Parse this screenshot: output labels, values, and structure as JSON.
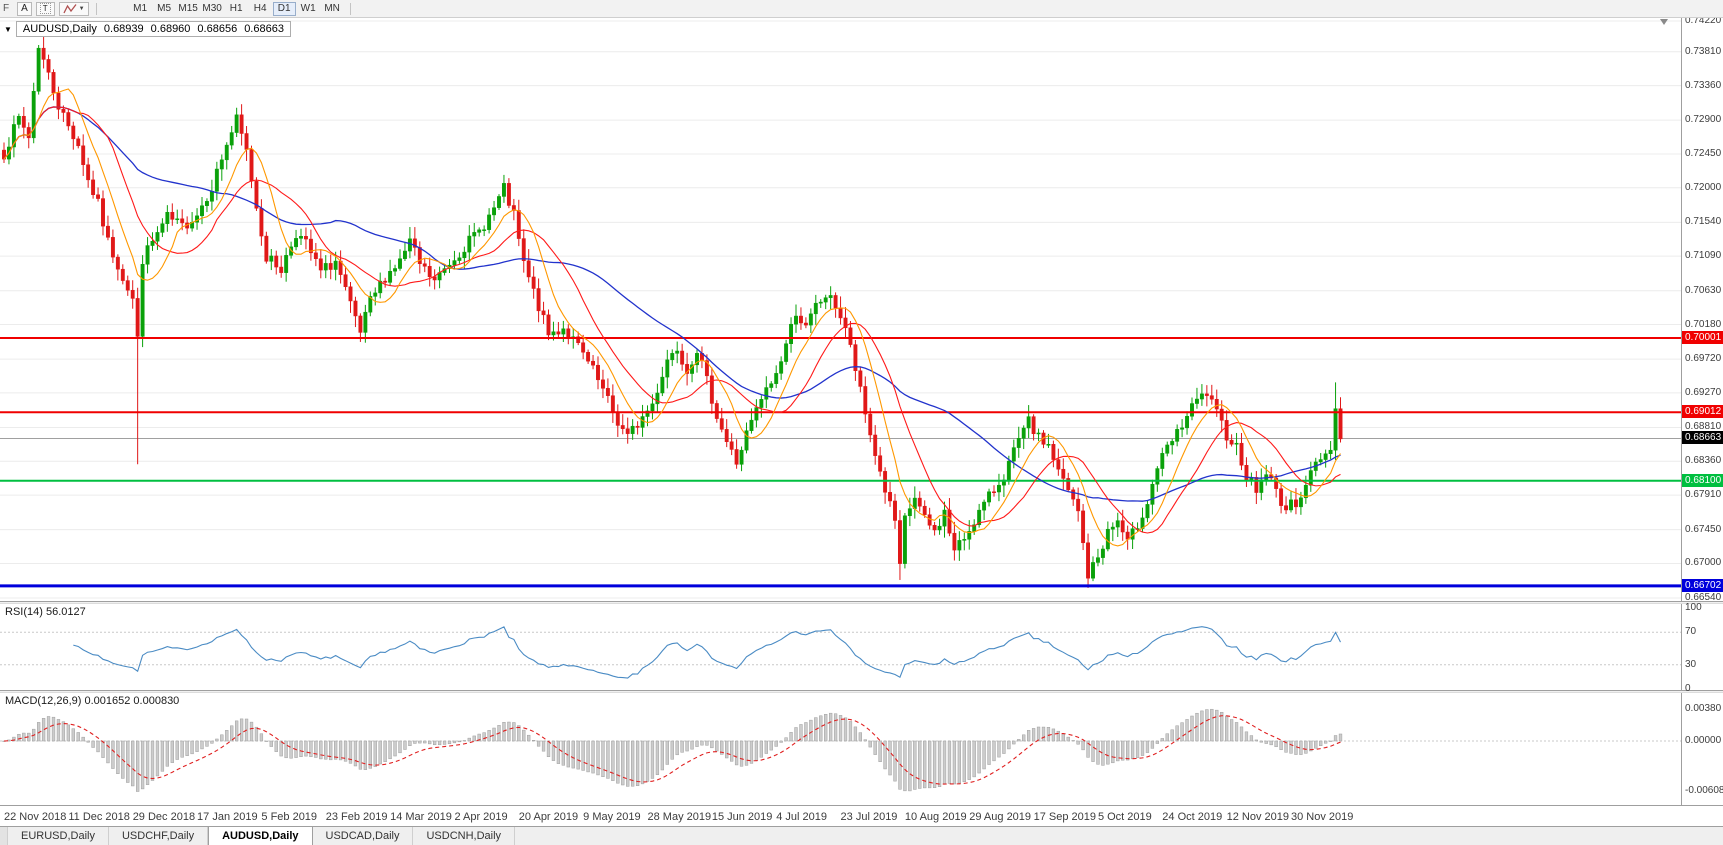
{
  "toolbar": {
    "edge_label": "F",
    "cursor_button_label": "A",
    "text_button_label": "T",
    "timeframes": [
      "M1",
      "M5",
      "M15",
      "M30",
      "H1",
      "H4",
      "D1",
      "W1",
      "MN"
    ],
    "active_timeframe": "D1"
  },
  "chart": {
    "header": {
      "symbol": "AUDUSD,Daily",
      "open": "0.68939",
      "high": "0.68960",
      "low": "0.68656",
      "close": "0.68663"
    },
    "price_axis_labels": [
      "0.74220",
      "0.73810",
      "0.73360",
      "0.72900",
      "0.72450",
      "0.72000",
      "0.71540",
      "0.71090",
      "0.70630",
      "0.70180",
      "0.69720",
      "0.69270",
      "0.68810",
      "0.68360",
      "0.67910",
      "0.67450",
      "0.67000",
      "0.66540"
    ],
    "price_axis_range": {
      "top": 0.7422,
      "bottom": 0.6654
    },
    "hlines": [
      {
        "price": 0.70001,
        "label": "0.70001",
        "color": "#f00000",
        "thickness": 2
      },
      {
        "price": 0.69012,
        "label": "0.69012",
        "color": "#f00000",
        "thickness": 2
      },
      {
        "price": 0.681,
        "label": "0.68100",
        "color": "#00bf40",
        "thickness": 2
      },
      {
        "price": 0.66702,
        "label": "0.66702",
        "color": "#0000dc",
        "thickness": 3
      }
    ],
    "bid": {
      "price": 0.68663,
      "label": "0.68663",
      "badge_bg": "#000000",
      "badge_fg": "#ffffff",
      "line_color": "#a0a0a0"
    },
    "date_labels": [
      "22 Nov 2018",
      "11 Dec 2018",
      "29 Dec 2018",
      "17 Jan 2019",
      "5 Feb 2019",
      "23 Feb 2019",
      "14 Mar 2019",
      "2 Apr 2019",
      "20 Apr 2019",
      "9 May 2019",
      "28 May 2019",
      "15 Jun 2019",
      "4 Jul 2019",
      "23 Jul 2019",
      "10 Aug 2019",
      "29 Aug 2019",
      "17 Sep 2019",
      "5 Oct 2019",
      "24 Oct 2019",
      "12 Nov 2019",
      "30 Nov 2019"
    ],
    "date_tick_interval": 13,
    "candle_count": 271,
    "price_path_anchors": [
      [
        0,
        0.7246
      ],
      [
        3,
        0.7292
      ],
      [
        5,
        0.7268
      ],
      [
        7,
        0.739
      ],
      [
        9,
        0.735
      ],
      [
        11,
        0.731
      ],
      [
        13,
        0.7282
      ],
      [
        15,
        0.7258
      ],
      [
        17,
        0.721
      ],
      [
        19,
        0.7178
      ],
      [
        21,
        0.7128
      ],
      [
        24,
        0.7082
      ],
      [
        26,
        0.7052
      ],
      [
        27,
        0.6998
      ],
      [
        28,
        0.7105
      ],
      [
        30,
        0.7128
      ],
      [
        33,
        0.716
      ],
      [
        36,
        0.7148
      ],
      [
        39,
        0.7165
      ],
      [
        42,
        0.7202
      ],
      [
        45,
        0.7258
      ],
      [
        47,
        0.729
      ],
      [
        49,
        0.7248
      ],
      [
        51,
        0.7175
      ],
      [
        53,
        0.7108
      ],
      [
        56,
        0.7092
      ],
      [
        59,
        0.714
      ],
      [
        61,
        0.7125
      ],
      [
        64,
        0.7088
      ],
      [
        67,
        0.7102
      ],
      [
        70,
        0.7042
      ],
      [
        72,
        0.7006
      ],
      [
        74,
        0.7048
      ],
      [
        77,
        0.7082
      ],
      [
        80,
        0.7102
      ],
      [
        82,
        0.7128
      ],
      [
        84,
        0.7098
      ],
      [
        87,
        0.7075
      ],
      [
        90,
        0.71
      ],
      [
        93,
        0.7122
      ],
      [
        96,
        0.7142
      ],
      [
        99,
        0.7172
      ],
      [
        101,
        0.7198
      ],
      [
        103,
        0.7162
      ],
      [
        105,
        0.7098
      ],
      [
        108,
        0.7042
      ],
      [
        110,
        0.7004
      ],
      [
        113,
        0.7014
      ],
      [
        116,
        0.6988
      ],
      [
        119,
        0.6956
      ],
      [
        122,
        0.6916
      ],
      [
        124,
        0.6888
      ],
      [
        126,
        0.6868
      ],
      [
        128,
        0.6886
      ],
      [
        131,
        0.6912
      ],
      [
        134,
        0.6972
      ],
      [
        136,
        0.6988
      ],
      [
        138,
        0.6958
      ],
      [
        140,
        0.6986
      ],
      [
        142,
        0.6942
      ],
      [
        144,
        0.6898
      ],
      [
        146,
        0.6862
      ],
      [
        148,
        0.6834
      ],
      [
        150,
        0.6872
      ],
      [
        153,
        0.6918
      ],
      [
        156,
        0.6952
      ],
      [
        158,
        0.6992
      ],
      [
        160,
        0.7036
      ],
      [
        162,
        0.7012
      ],
      [
        164,
        0.7042
      ],
      [
        166,
        0.7056
      ],
      [
        168,
        0.7044
      ],
      [
        170,
        0.7014
      ],
      [
        172,
        0.6958
      ],
      [
        174,
        0.6898
      ],
      [
        176,
        0.6846
      ],
      [
        178,
        0.6798
      ],
      [
        180,
        0.6756
      ],
      [
        181,
        0.6692
      ],
      [
        182,
        0.6758
      ],
      [
        184,
        0.6788
      ],
      [
        186,
        0.6758
      ],
      [
        188,
        0.6742
      ],
      [
        190,
        0.6768
      ],
      [
        192,
        0.6716
      ],
      [
        194,
        0.6734
      ],
      [
        196,
        0.6758
      ],
      [
        199,
        0.6788
      ],
      [
        202,
        0.6818
      ],
      [
        205,
        0.6862
      ],
      [
        207,
        0.6888
      ],
      [
        209,
        0.6866
      ],
      [
        211,
        0.6858
      ],
      [
        213,
        0.6822
      ],
      [
        215,
        0.6796
      ],
      [
        217,
        0.6768
      ],
      [
        219,
        0.6684
      ],
      [
        221,
        0.6708
      ],
      [
        223,
        0.6742
      ],
      [
        225,
        0.6756
      ],
      [
        227,
        0.6726
      ],
      [
        229,
        0.6752
      ],
      [
        231,
        0.6782
      ],
      [
        233,
        0.6828
      ],
      [
        235,
        0.6852
      ],
      [
        237,
        0.6872
      ],
      [
        239,
        0.6896
      ],
      [
        241,
        0.6916
      ],
      [
        243,
        0.6926
      ],
      [
        245,
        0.6898
      ],
      [
        247,
        0.6872
      ],
      [
        249,
        0.6856
      ],
      [
        251,
        0.6818
      ],
      [
        253,
        0.6798
      ],
      [
        255,
        0.6822
      ],
      [
        257,
        0.6796
      ],
      [
        259,
        0.6772
      ],
      [
        261,
        0.6782
      ],
      [
        263,
        0.6806
      ],
      [
        265,
        0.6832
      ],
      [
        267,
        0.6846
      ],
      [
        268,
        0.6852
      ],
      [
        269,
        0.6906
      ],
      [
        270,
        0.6866
      ]
    ],
    "wick_overrides": [
      {
        "i": 27,
        "low": 0.6832
      },
      {
        "i": 126,
        "low": 0.6865
      },
      {
        "i": 181,
        "low": 0.6678
      },
      {
        "i": 219,
        "low": 0.6671
      },
      {
        "i": 269,
        "high": 0.6941
      }
    ],
    "colors": {
      "up": "#0aa10a",
      "down": "#e01818",
      "ma_fast": "#ff9800",
      "ma_mid": "#ff1a1a",
      "ma_slow": "#2233cc",
      "grid": "#ececec"
    },
    "ma_periods": {
      "fast": 8,
      "mid": 16,
      "slow": 40
    }
  },
  "rsi": {
    "name": "RSI(14)",
    "value": "56.0127",
    "period": 14,
    "axis_labels": [
      "100",
      "70",
      "30",
      "0"
    ],
    "level_lines": [
      70,
      30
    ],
    "color": "#4a8bc4"
  },
  "macd": {
    "name": "MACD(12,26,9)",
    "values": "0.001652 0.000830",
    "fast": 12,
    "slow": 26,
    "signal": 9,
    "axis_labels": [
      "0.00380",
      "0.00000",
      "-0.00608"
    ],
    "histogram_color": "#cccccc",
    "histogram_border": "#9e9e9e",
    "signal_color": "#e02020"
  },
  "tabs": {
    "items": [
      "EURUSD,Daily",
      "USDCHF,Daily",
      "AUDUSD,Daily",
      "USDCAD,Daily",
      "USDCNH,Daily"
    ],
    "active": "AUDUSD,Daily"
  }
}
